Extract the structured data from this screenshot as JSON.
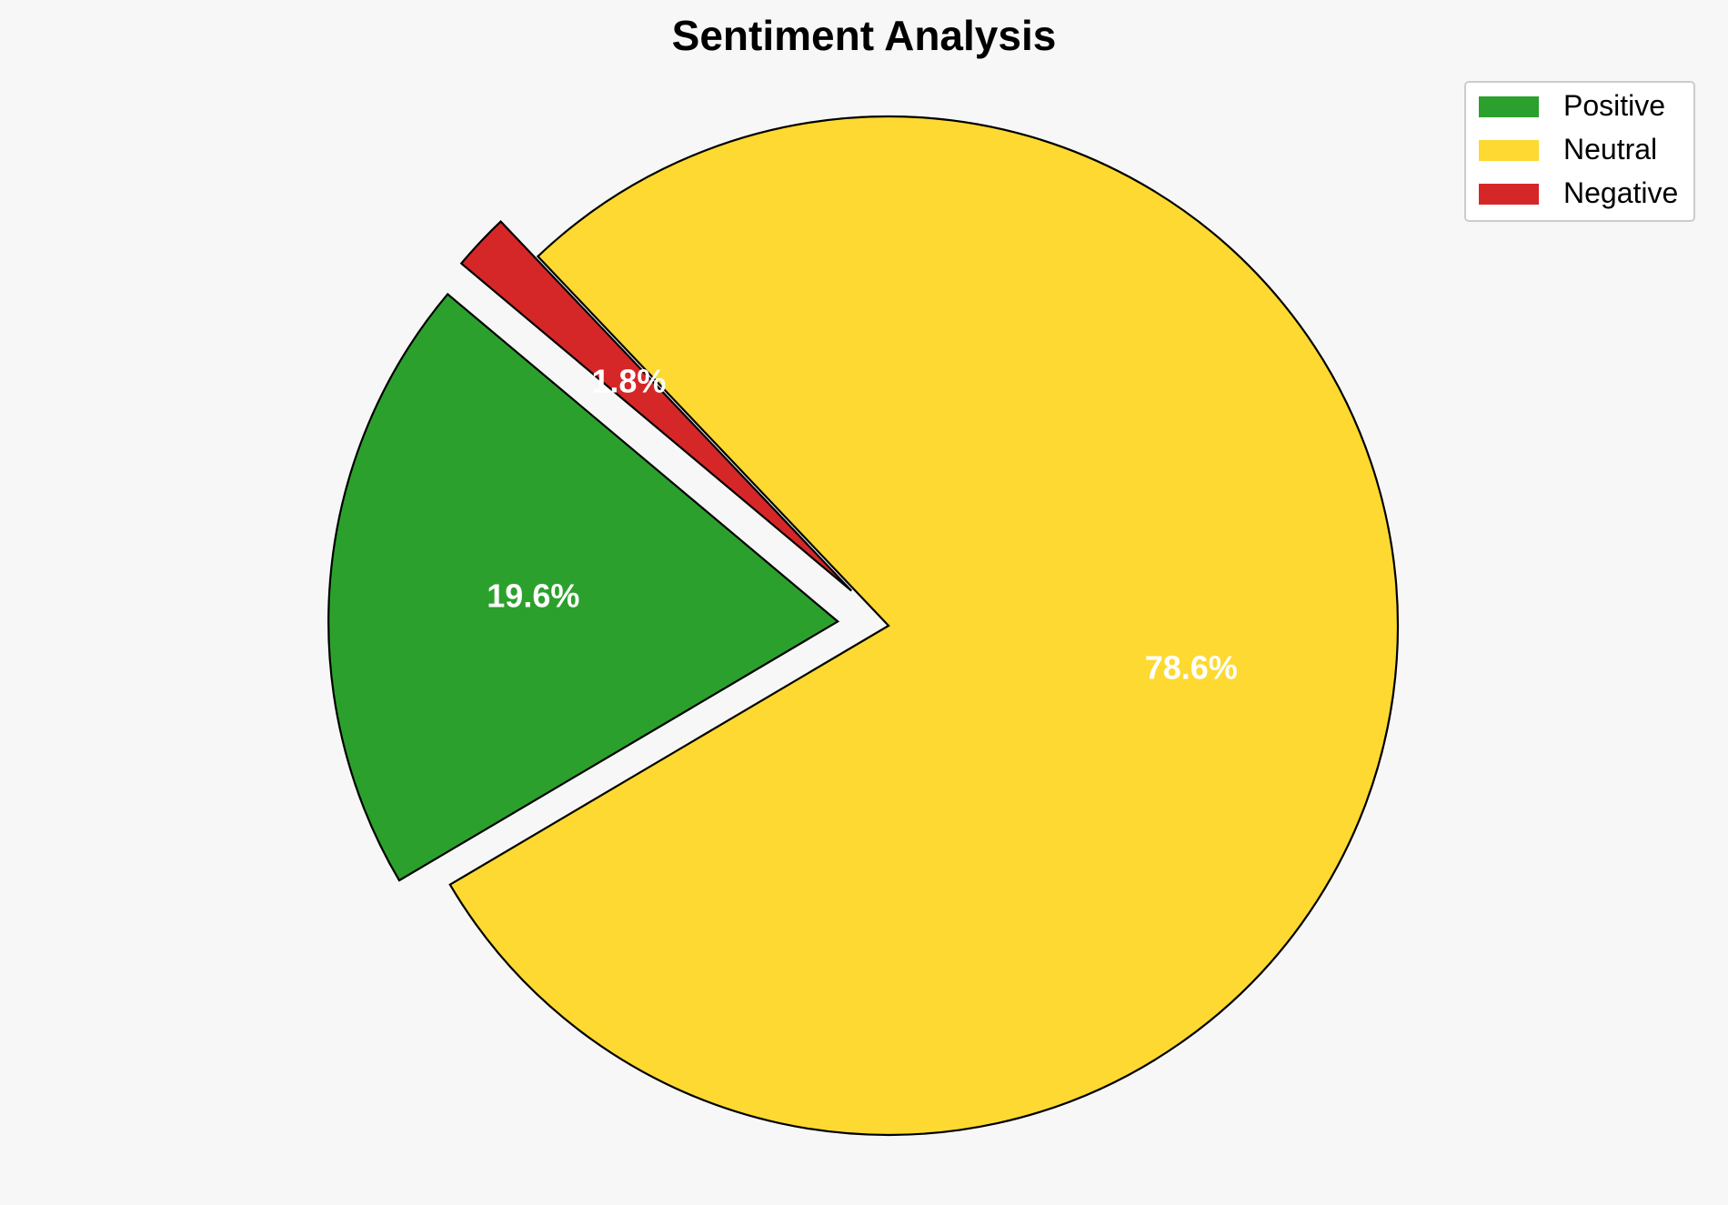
{
  "chart_data": {
    "type": "pie",
    "title": "Sentiment Analysis",
    "slices": [
      {
        "label": "Positive",
        "value": 19.6,
        "pct_label": "19.6%",
        "color": "#2ca02c",
        "exploded": true
      },
      {
        "label": "Neutral",
        "value": 78.6,
        "pct_label": "78.6%",
        "color": "#fdd931",
        "exploded": false
      },
      {
        "label": "Negative",
        "value": 1.8,
        "pct_label": "1.8%",
        "color": "#d62728",
        "exploded": true
      }
    ],
    "legend_placement": "top-right"
  }
}
